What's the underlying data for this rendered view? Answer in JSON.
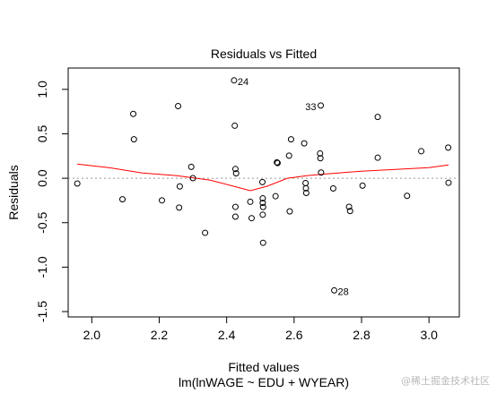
{
  "chart_data": {
    "type": "scatter",
    "title": "Residuals vs Fitted",
    "xlabel": "Fitted values",
    "sublabel": "lm(lnWAGE ~ EDU + WYEAR)",
    "ylabel": "Residuals",
    "xlim": [
      1.93,
      3.09
    ],
    "ylim": [
      -1.56,
      1.24
    ],
    "xticks": [
      "2.0",
      "2.2",
      "2.4",
      "2.6",
      "2.8",
      "3.0"
    ],
    "xtick_values": [
      2.0,
      2.2,
      2.4,
      2.6,
      2.8,
      3.0
    ],
    "yticks": [
      "-1.5",
      "-1.0",
      "-0.5",
      "0.0",
      "0.5",
      "1.0"
    ],
    "ytick_values": [
      -1.5,
      -1.0,
      -0.5,
      0.0,
      0.5,
      1.0
    ],
    "points": [
      {
        "x": 1.957,
        "y": -0.059
      },
      {
        "x": 2.091,
        "y": -0.237
      },
      {
        "x": 2.123,
        "y": 0.724
      },
      {
        "x": 2.125,
        "y": 0.438
      },
      {
        "x": 2.208,
        "y": -0.249
      },
      {
        "x": 2.256,
        "y": 0.812
      },
      {
        "x": 2.259,
        "y": -0.33
      },
      {
        "x": 2.261,
        "y": -0.092
      },
      {
        "x": 2.295,
        "y": 0.128
      },
      {
        "x": 2.3,
        "y": 0.001
      },
      {
        "x": 2.336,
        "y": -0.614
      },
      {
        "x": 2.422,
        "y": 1.101,
        "label": "24"
      },
      {
        "x": 2.424,
        "y": 0.591
      },
      {
        "x": 2.426,
        "y": 0.104
      },
      {
        "x": 2.428,
        "y": 0.055
      },
      {
        "x": 2.426,
        "y": -0.322
      },
      {
        "x": 2.426,
        "y": -0.432
      },
      {
        "x": 2.47,
        "y": -0.265
      },
      {
        "x": 2.474,
        "y": -0.449
      },
      {
        "x": 2.506,
        "y": -0.043
      },
      {
        "x": 2.507,
        "y": -0.226
      },
      {
        "x": 2.507,
        "y": -0.277
      },
      {
        "x": 2.508,
        "y": -0.324
      },
      {
        "x": 2.507,
        "y": -0.41
      },
      {
        "x": 2.508,
        "y": -0.726
      },
      {
        "x": 2.545,
        "y": -0.202
      },
      {
        "x": 2.549,
        "y": 0.179
      },
      {
        "x": 2.551,
        "y": 0.171
      },
      {
        "x": 2.585,
        "y": 0.254
      },
      {
        "x": 2.591,
        "y": 0.438
      },
      {
        "x": 2.587,
        "y": -0.373
      },
      {
        "x": 2.63,
        "y": 0.393
      },
      {
        "x": 2.634,
        "y": -0.054
      },
      {
        "x": 2.635,
        "y": -0.113
      },
      {
        "x": 2.636,
        "y": -0.165
      },
      {
        "x": 2.677,
        "y": 0.279
      },
      {
        "x": 2.678,
        "y": 0.225
      },
      {
        "x": 2.68,
        "y": 0.064
      },
      {
        "x": 2.679,
        "y": 0.818,
        "label": "33"
      },
      {
        "x": 2.716,
        "y": -0.115
      },
      {
        "x": 2.719,
        "y": -1.262,
        "label": "28"
      },
      {
        "x": 2.763,
        "y": -0.321
      },
      {
        "x": 2.766,
        "y": -0.369
      },
      {
        "x": 2.803,
        "y": -0.083
      },
      {
        "x": 2.848,
        "y": 0.69
      },
      {
        "x": 2.848,
        "y": 0.231
      },
      {
        "x": 2.935,
        "y": -0.198
      },
      {
        "x": 2.977,
        "y": 0.304
      },
      {
        "x": 3.057,
        "y": 0.345
      },
      {
        "x": 3.058,
        "y": -0.051
      }
    ],
    "smoother": {
      "color": "#ff0000",
      "x": [
        1.957,
        2.05,
        2.15,
        2.25,
        2.35,
        2.42,
        2.47,
        2.52,
        2.58,
        2.64,
        2.7,
        2.8,
        2.9,
        3.0,
        3.058
      ],
      "y": [
        0.16,
        0.12,
        0.06,
        0.03,
        -0.02,
        -0.09,
        -0.14,
        -0.09,
        0.0,
        0.03,
        0.05,
        0.08,
        0.1,
        0.12,
        0.15
      ]
    },
    "reference_line": {
      "y": 0,
      "style": "dotted",
      "color": "#999999"
    },
    "grid": false
  },
  "watermark": "@稀土掘金技术社区"
}
